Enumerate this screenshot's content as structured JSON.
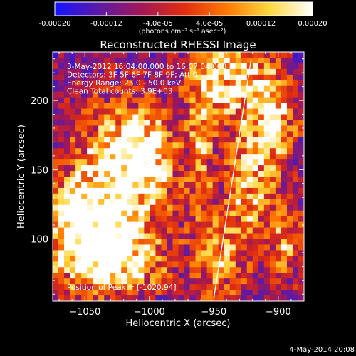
{
  "chart_data": {
    "type": "heatmap",
    "title": "Reconstructed RHESSI Image",
    "xlabel": "Heliocentric X (arcsec)",
    "ylabel": "Heliocentric Y (arcsec)",
    "xlim": [
      -1075,
      -880
    ],
    "ylim": [
      55,
      235
    ],
    "xticks": [
      -1050,
      -1000,
      -950,
      -900
    ],
    "yticks": [
      100,
      150,
      200
    ],
    "colorbar": {
      "range": [
        -0.0002,
        0.0002
      ],
      "tick_labels": [
        "-0.00020",
        "-0.00012",
        "-4.0e-05",
        "4.0e-05",
        "0.00012",
        "0.00020"
      ],
      "tick_values": [
        -0.0002,
        -0.00012,
        -4e-05,
        4e-05,
        0.00012,
        0.0002
      ],
      "unit_label": "(photons cm⁻² s⁻¹ asec⁻²)",
      "colors": [
        "#1414ff",
        "#5a1aa8",
        "#a01858",
        "#e02c10",
        "#ff7a00",
        "#ffd840",
        "#ffffff"
      ]
    },
    "annotations": [
      "3-May-2012 16:04:00.000 to 16:07:04.000",
      "Detectors: 3F 5F 6F 7F 8F 9F; Att 0",
      "Energy Range: 25.0 - 50.0 keV",
      "Clean     Total counts: 3.9E+03"
    ],
    "peak_label": "Position of Peak = [-1020,94]",
    "limb_line": {
      "x1": -950,
      "y1": 57,
      "x2": -921,
      "y2": 230
    },
    "hotspots": [
      {
        "x": -1022,
        "y": 145,
        "sx": 30,
        "sy": 40,
        "a": 1.0
      },
      {
        "x": -1005,
        "y": 160,
        "sx": 14,
        "sy": 16,
        "a": 0.9
      },
      {
        "x": -1030,
        "y": 100,
        "sx": 15,
        "sy": 14,
        "a": 1.0
      },
      {
        "x": -1055,
        "y": 90,
        "sx": 22,
        "sy": 25,
        "a": 0.8
      },
      {
        "x": -1010,
        "y": 80,
        "sx": 20,
        "sy": 14,
        "a": 0.6
      },
      {
        "x": -1060,
        "y": 125,
        "sx": 12,
        "sy": 15,
        "a": 0.6
      },
      {
        "x": -940,
        "y": 215,
        "sx": 20,
        "sy": 22,
        "a": 1.0
      },
      {
        "x": -905,
        "y": 185,
        "sx": 14,
        "sy": 28,
        "a": 0.9
      },
      {
        "x": -925,
        "y": 140,
        "sx": 12,
        "sy": 25,
        "a": 0.8
      },
      {
        "x": -895,
        "y": 100,
        "sx": 10,
        "sy": 22,
        "a": 0.7
      },
      {
        "x": -945,
        "y": 85,
        "sx": 15,
        "sy": 25,
        "a": 0.7
      },
      {
        "x": -960,
        "y": 165,
        "sx": 7,
        "sy": 28,
        "a": 0.6
      }
    ]
  },
  "footer": {
    "timestamp": "4-May-2014 20:08"
  }
}
